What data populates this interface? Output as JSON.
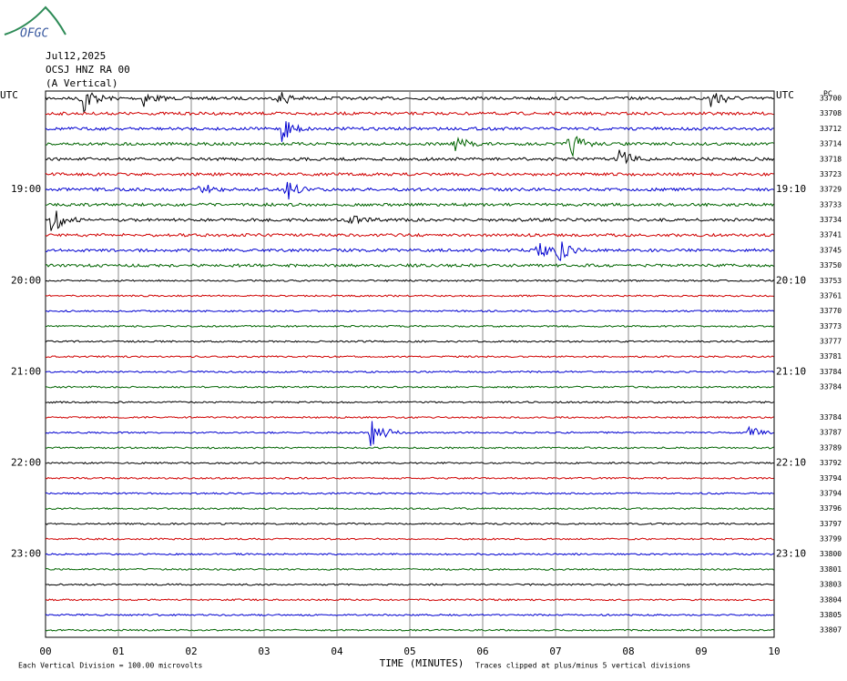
{
  "header": {
    "logo": "OFGC",
    "date": "Jul12,2025",
    "station": "OCSJ HNZ RA 00",
    "component": "(A Vertical)",
    "units_corner": "PC"
  },
  "left_labels": [
    "UTC",
    "19:00",
    "20:00",
    "21:00",
    "22:00",
    "23:00"
  ],
  "right_labels": [
    "UTC",
    "19:10",
    "20:10",
    "21:10",
    "22:10",
    "23:10"
  ],
  "right_counts": [
    "33700",
    "33708",
    "33712",
    "33714",
    "33718",
    "33723",
    "33729",
    "33733",
    "33734",
    "33741",
    "33745",
    "33750",
    "33753",
    "33761",
    "33770",
    "33773",
    "33777",
    "33781",
    "33784",
    "33784",
    "33784",
    "33787",
    "33789",
    "33792",
    "33794",
    "33794",
    "33796",
    "33797",
    "33799",
    "33800",
    "33801",
    "33803",
    "33804",
    "33805",
    "33807"
  ],
  "x_ticks": [
    "00",
    "01",
    "02",
    "03",
    "04",
    "05",
    "06",
    "07",
    "08",
    "09",
    "10"
  ],
  "x_label": "TIME (MINUTES)",
  "footer": {
    "scale_note": "Each Vertical Division =  100.00 microvolts",
    "clip_note": "Traces clipped at plus/minus 5 vertical divisions"
  },
  "trace_colors": [
    "#000000",
    "#d00000",
    "#0000d0",
    "#006400"
  ]
}
